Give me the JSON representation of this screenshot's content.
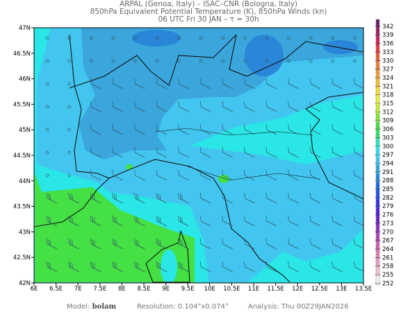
{
  "header": {
    "line1": "ARPAL (Genoa, Italy)  –  ISAC–CNR (Bologna, Italy)",
    "line2": "850hPa Equivalent Potential Temperature (K), 850hPa Winds (kn)",
    "line3": "06 UTC Fri 30 JAN  –  τ = 30h"
  },
  "map": {
    "lat_labels": [
      "47N",
      "46.5N",
      "46N",
      "45.5N",
      "45N",
      "44.5N",
      "44N",
      "43.5N",
      "43N",
      "42.5N",
      "42N"
    ],
    "lon_labels": [
      "6E",
      "6.5E",
      "7E",
      "7.5E",
      "8E",
      "8.5E",
      "9E",
      "9.5E",
      "10E",
      "10.5E",
      "11E",
      "11.5E",
      "12E",
      "12.5E",
      "13E",
      "13.5E"
    ],
    "watermark": "ARPAL",
    "field_colors": {
      "cold_blue": "#2a86d8",
      "mid_blue": "#3aa6dc",
      "light_blue": "#42c6f0",
      "cyan": "#2ae6e6",
      "green": "#44e044"
    }
  },
  "colorbar": {
    "labels": [
      "342",
      "339",
      "336",
      "333",
      "330",
      "327",
      "324",
      "321",
      "318",
      "315",
      "312",
      "309",
      "306",
      "303",
      "300",
      "297",
      "294",
      "291",
      "288",
      "285",
      "282",
      "279",
      "276",
      "273",
      "270",
      "267",
      "264",
      "261",
      "258",
      "255",
      "252"
    ],
    "colors": [
      "#6a1a6a",
      "#a01a60",
      "#d02050",
      "#e03a40",
      "#e86030",
      "#ec8030",
      "#f0a030",
      "#f0c030",
      "#f0e030",
      "#e8f030",
      "#c0f030",
      "#80e830",
      "#40e040",
      "#30e070",
      "#28e8c8",
      "#30e0f0",
      "#40c8f0",
      "#30a8e0",
      "#2088e0",
      "#1868e0",
      "#2050e0",
      "#3030e0",
      "#5020d8",
      "#7020c8",
      "#9030c0",
      "#b040b0",
      "#d060b0",
      "#e080b0",
      "#e8a0c0",
      "#f0c0d0",
      "#f4f4f4"
    ]
  },
  "footer": {
    "model_label": "Model:",
    "model": "bolam",
    "resolution": "Resolution: 0.104°x0.074°",
    "analysis": "Analysis: Thu  00Z29JAN2026"
  }
}
